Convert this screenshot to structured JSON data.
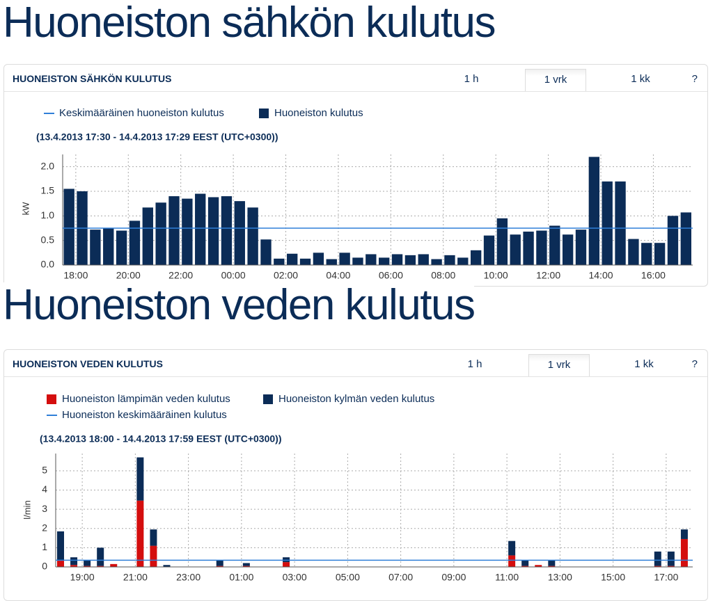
{
  "sections": [
    {
      "heading": "Huoneiston sähkön kulutus",
      "panel_title": "HUONEISTON SÄHKÖN KULUTUS",
      "tabs": [
        "1 h",
        "1 vrk",
        "1 kk"
      ],
      "active_tab": 1,
      "help": "?"
    },
    {
      "heading": "Huoneiston veden kulutus",
      "panel_title": "HUONEISTON VEDEN KULUTUS",
      "tabs": [
        "1 h",
        "1 vrk",
        "1 kk"
      ],
      "active_tab": 1,
      "help": "?"
    }
  ],
  "chart_data": [
    {
      "type": "bar",
      "subtitle": "(13.4.2013 17:30 - 14.4.2013 17:29 EEST (UTC+0300))",
      "y_label": "kW",
      "categories": [
        null,
        "18:00",
        null,
        null,
        null,
        "20:00",
        null,
        null,
        null,
        "22:00",
        null,
        null,
        null,
        "00:00",
        null,
        null,
        null,
        "02:00",
        null,
        null,
        null,
        "04:00",
        null,
        null,
        null,
        "06:00",
        null,
        null,
        null,
        "08:00",
        null,
        null,
        null,
        "10:00",
        null,
        null,
        null,
        "12:00",
        null,
        null,
        null,
        "14:00",
        null,
        null,
        null,
        "16:00",
        null,
        null
      ],
      "series": [
        {
          "name": "Huoneiston kulutus",
          "color": "#0b2c57",
          "values": [
            1.55,
            1.5,
            0.72,
            0.75,
            0.7,
            0.9,
            1.17,
            1.27,
            1.4,
            1.35,
            1.45,
            1.38,
            1.4,
            1.3,
            1.17,
            0.52,
            0.13,
            0.23,
            0.13,
            0.25,
            0.12,
            0.25,
            0.15,
            0.22,
            0.15,
            0.22,
            0.2,
            0.22,
            0.12,
            0.2,
            0.15,
            0.3,
            0.6,
            0.95,
            0.62,
            0.68,
            0.7,
            0.8,
            0.62,
            0.72,
            2.2,
            1.7,
            1.7,
            0.53,
            0.45,
            0.45,
            1.0,
            1.07
          ]
        }
      ],
      "average": {
        "name": "Keskimääräinen huoneiston kulutus",
        "color": "#2f7fd8",
        "value": 0.75
      },
      "ylim": [
        0,
        2.25
      ],
      "yticks": [
        {
          "value": 0,
          "label": "0.0"
        },
        0.5,
        {
          "value": 1,
          "label": "1.0"
        },
        1.5,
        {
          "value": 2,
          "label": "2.0"
        }
      ],
      "grid": true
    },
    {
      "type": "stacked_bar",
      "subtitle": "(13.4.2013 18:00 - 14.4.2013 17:59 EEST (UTC+0300))",
      "y_label": "l/min",
      "categories": [
        null,
        null,
        "19:00",
        null,
        null,
        null,
        "21:00",
        null,
        null,
        null,
        "23:00",
        null,
        null,
        null,
        "01:00",
        null,
        null,
        null,
        "03:00",
        null,
        null,
        null,
        "05:00",
        null,
        null,
        null,
        "07:00",
        null,
        null,
        null,
        "09:00",
        null,
        null,
        null,
        "11:00",
        null,
        null,
        null,
        "13:00",
        null,
        null,
        null,
        "15:00",
        null,
        null,
        null,
        "17:00",
        null
      ],
      "series": [
        {
          "name": "Huoneiston lämpimän veden kulutus",
          "color": "#d40e0e",
          "values": [
            0.35,
            0.1,
            0.05,
            0.05,
            0.15,
            0,
            3.45,
            1.1,
            0,
            0,
            0,
            0,
            0.05,
            0,
            0.05,
            0,
            0,
            0.25,
            0,
            0,
            0,
            0,
            0,
            0,
            0,
            0,
            0,
            0,
            0,
            0,
            0,
            0,
            0,
            0,
            0.6,
            0.05,
            0.1,
            0.05,
            0,
            0,
            0,
            0,
            0,
            0,
            0,
            0.05,
            0.05,
            1.45
          ]
        },
        {
          "name": "Huoneiston kylmän veden kulutus",
          "color": "#0b2c57",
          "values": [
            1.5,
            0.4,
            0.3,
            0.95,
            0,
            0,
            2.25,
            0.85,
            0.1,
            0,
            0,
            0,
            0.3,
            0,
            0.15,
            0,
            0,
            0.25,
            0,
            0,
            0,
            0,
            0,
            0,
            0,
            0,
            0,
            0,
            0,
            0,
            0,
            0,
            0,
            0,
            0.75,
            0.3,
            0,
            0.3,
            0,
            0,
            0,
            0,
            0,
            0,
            0,
            0.75,
            0.75,
            0.5
          ]
        }
      ],
      "average": {
        "name": "Huoneiston keskimääräinen kulutus",
        "color": "#2f7fd8",
        "value": 0.35
      },
      "ylim": [
        0,
        5.9
      ],
      "yticks": [
        0,
        1,
        2,
        3,
        4,
        5
      ],
      "grid": true
    }
  ]
}
